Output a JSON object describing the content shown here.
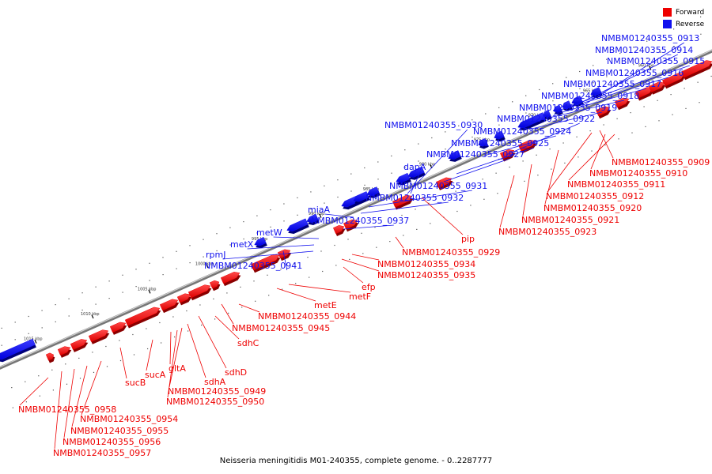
{
  "legend": {
    "forward_label": "Forward",
    "reverse_label": "Reverse",
    "forward_color": "#ee0000",
    "reverse_color": "#1010ee"
  },
  "caption": "Neisseria meningitidis M01-240355, complete genome. - 0..2287777",
  "ticks": [
    "960 kbp",
    "965 kbp",
    "970 kbp",
    "975 kbp",
    "980 kbp",
    "985 kbp",
    "990 kbp",
    "995 kbp",
    "1000 kbp",
    "1005 kbp",
    "1010 kbp",
    "1015 kbp"
  ],
  "reverse_genes": [
    "NMBM01240355_0913",
    "NMBM01240355_0914",
    "NMBM01240355_0915",
    "NMBM01240355_0916",
    "NMBM01240355_0917",
    "NMBM01240355_0918",
    "NMBM01240355_0919",
    "NMBM01240355_0922",
    "NMBM01240355_0930",
    "NMBM01240355_0924",
    "NMBM01240355_0925",
    "NMBM01240355_0927",
    "dapA",
    "NMBM01240355_0931",
    "NMBM01240355_0932",
    "miaA",
    "NMBM01240355_0937",
    "metW",
    "metX",
    "rpmJ",
    "NMBM01240355_0941"
  ],
  "forward_genes": [
    "NMBM01240355_0909",
    "NMBM01240355_0910",
    "NMBM01240355_0911",
    "NMBM01240355_0912",
    "NMBM01240355_0920",
    "NMBM01240355_0921",
    "NMBM01240355_0923",
    "pip",
    "NMBM01240355_0929",
    "NMBM01240355_0934",
    "NMBM01240355_0935",
    "efp",
    "metF",
    "metE",
    "NMBM01240355_0944",
    "NMBM01240355_0945",
    "sdhC",
    "sdhD",
    "sdhA",
    "NMBM01240355_0949",
    "NMBM01240355_0950",
    "gltA",
    "sucA",
    "sucB",
    "NMBM01240355_0954",
    "NMBM01240355_0955",
    "NMBM01240355_0956",
    "NMBM01240355_0957",
    "NMBM01240355_0958"
  ]
}
